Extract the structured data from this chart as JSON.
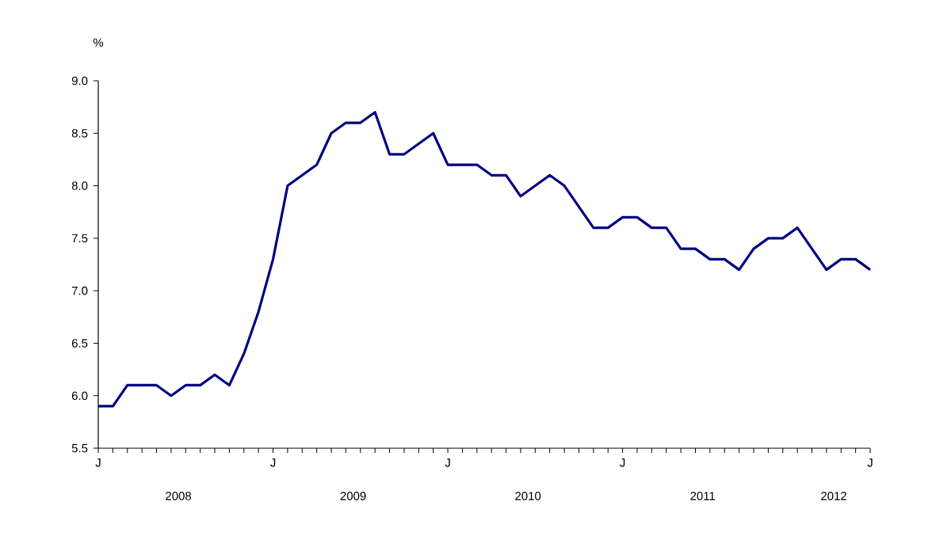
{
  "chart_data": {
    "type": "line",
    "ylabel": "%",
    "categories": [
      "J",
      null,
      null,
      null,
      null,
      null,
      null,
      null,
      null,
      null,
      null,
      null,
      "J",
      null,
      null,
      null,
      null,
      null,
      null,
      null,
      null,
      null,
      null,
      null,
      "J",
      null,
      null,
      null,
      null,
      null,
      null,
      null,
      null,
      null,
      null,
      null,
      "J",
      null,
      null,
      null,
      null,
      null,
      null,
      null,
      null,
      null,
      null,
      null,
      null,
      null,
      null,
      null,
      null,
      "J"
    ],
    "series": [
      {
        "color": "#000080",
        "values": [
          5.9,
          5.9,
          6.1,
          6.1,
          6.1,
          6.0,
          6.1,
          6.1,
          6.2,
          6.1,
          6.4,
          6.8,
          7.3,
          8.0,
          8.1,
          8.2,
          8.5,
          8.6,
          8.6,
          8.7,
          8.3,
          8.3,
          8.4,
          8.5,
          8.2,
          8.2,
          8.2,
          8.1,
          8.1,
          7.9,
          8.0,
          8.1,
          8.0,
          7.8,
          7.6,
          7.6,
          7.7,
          7.7,
          7.6,
          7.6,
          7.4,
          7.4,
          7.3,
          7.3,
          7.2,
          7.4,
          7.5,
          7.5,
          7.6,
          7.4,
          7.2,
          7.3,
          7.3,
          7.2
        ]
      }
    ],
    "ylim": [
      5.5,
      9.0
    ],
    "yticks": [
      {
        "value": 5.5,
        "label": "5.5"
      },
      {
        "value": 6.0,
        "label": "6.0"
      },
      {
        "value": 6.5,
        "label": "6.5"
      },
      {
        "value": 7.0,
        "label": "7.0"
      },
      {
        "value": 7.5,
        "label": "7.5"
      },
      {
        "value": 8.0,
        "label": "8.0"
      },
      {
        "value": 8.5,
        "label": "8.5"
      },
      {
        "value": 9.0,
        "label": "9.0"
      }
    ],
    "annotations": [
      "2008",
      "2009",
      "2010",
      "2011",
      "2012"
    ]
  }
}
